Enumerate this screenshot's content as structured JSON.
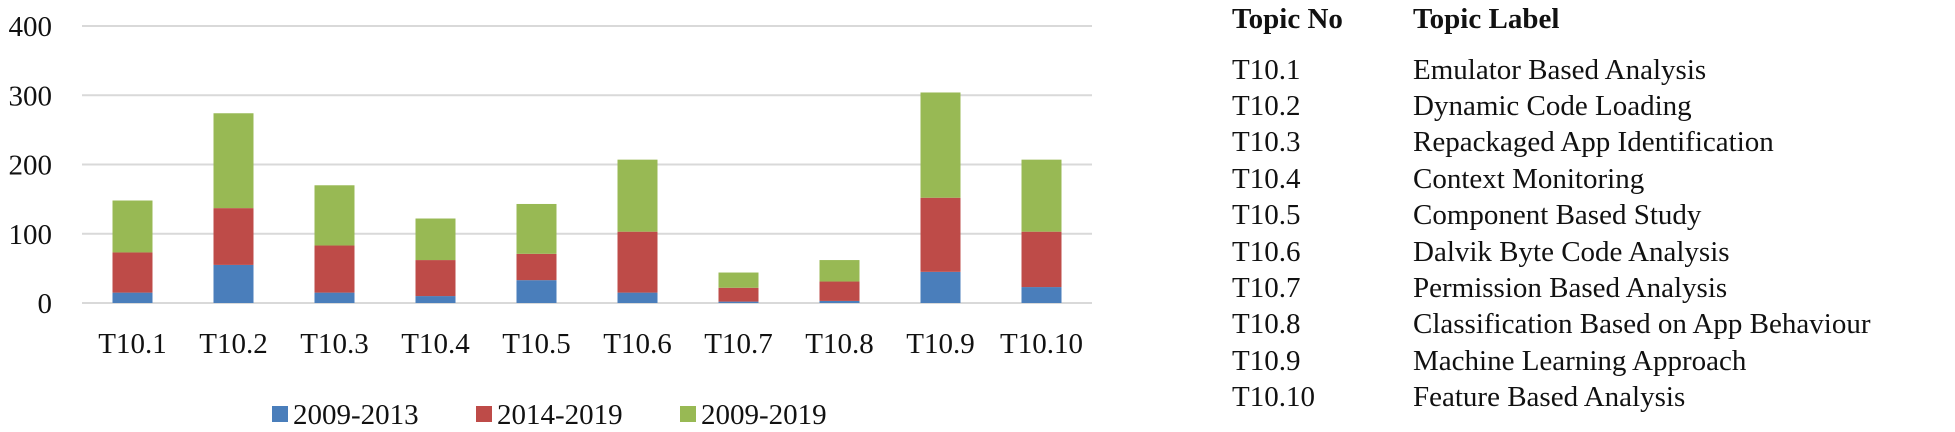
{
  "chart_data": {
    "type": "bar",
    "stacked": true,
    "categories": [
      "T10.1",
      "T10.2",
      "T10.3",
      "T10.4",
      "T10.5",
      "T10.6",
      "T10.7",
      "T10.8",
      "T10.9",
      "T10.10"
    ],
    "series": [
      {
        "name": "2009-2013",
        "color": "#4a7ebb",
        "values": [
          15,
          55,
          15,
          10,
          33,
          15,
          2,
          3,
          45,
          23
        ]
      },
      {
        "name": "2014-2019",
        "color": "#be4b48",
        "values": [
          58,
          82,
          68,
          52,
          38,
          88,
          20,
          28,
          107,
          80
        ]
      },
      {
        "name": "2009-2019",
        "color": "#98b954",
        "values": [
          75,
          137,
          87,
          60,
          72,
          104,
          22,
          31,
          152,
          104
        ]
      }
    ],
    "yticks": [
      0,
      100,
      200,
      300,
      400
    ],
    "ylim": [
      0,
      400
    ],
    "grid": true,
    "legend_position": "bottom"
  },
  "table": {
    "header_no": "Topic No",
    "header_label": "Topic Label",
    "rows": [
      {
        "no": "T10.1",
        "label": "Emulator Based Analysis"
      },
      {
        "no": "T10.2",
        "label": "Dynamic Code Loading"
      },
      {
        "no": "T10.3",
        "label": "Repackaged App Identification"
      },
      {
        "no": "T10.4",
        "label": "Context Monitoring"
      },
      {
        "no": "T10.5",
        "label": "Component Based Study"
      },
      {
        "no": "T10.6",
        "label": "Dalvik Byte Code Analysis"
      },
      {
        "no": "T10.7",
        "label": "Permission Based Analysis"
      },
      {
        "no": "T10.8",
        "label": "Classification Based on App Behaviour"
      },
      {
        "no": "T10.9",
        "label": "Machine Learning Approach"
      },
      {
        "no": "T10.10",
        "label": "Feature Based Analysis"
      }
    ]
  }
}
